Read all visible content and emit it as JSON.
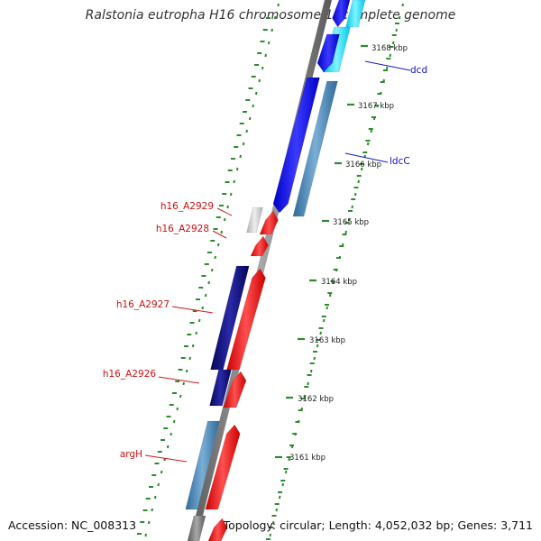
{
  "title": "Ralstonia eutropha H16 chromosome 1, complete genome",
  "footer": {
    "accession": "Accession: NC_008313",
    "topology": "Topology: circular; Length: 4,052,032 bp; Genes: 3,711"
  },
  "scale_labels": [
    "3168 kbp",
    "3167 kbp",
    "3166 kbp",
    "3165 kbp",
    "3164 kbp",
    "3163 kbp",
    "3162 kbp",
    "3161 kbp"
  ],
  "gene_labels": [
    {
      "text": "dcd",
      "strand": "plus",
      "color": "#1010cc"
    },
    {
      "text": "ldcC",
      "strand": "plus",
      "color": "#1010cc"
    },
    {
      "text": "h16_A2929",
      "strand": "minus",
      "color": "#cc1010"
    },
    {
      "text": "h16_A2928",
      "strand": "minus",
      "color": "#cc1010"
    },
    {
      "text": "h16_A2927",
      "strand": "minus",
      "color": "#cc1010"
    },
    {
      "text": "h16_A2926",
      "strand": "minus",
      "color": "#cc1010"
    },
    {
      "text": "argH",
      "strand": "minus",
      "color": "#cc1010"
    }
  ],
  "colors": {
    "backbone": "#808080",
    "scale_dots": "#2e8b2e",
    "plus_gene": "#1a1aff",
    "plus_gene_alt": "#00e5ff",
    "plus_feature": "#4682b4",
    "minus_gene": "#ff1a1a",
    "minus_feature_dark": "#0a0a80",
    "minus_feature": "#4682b4",
    "minus_feature_grey": "#c8c8c8"
  }
}
